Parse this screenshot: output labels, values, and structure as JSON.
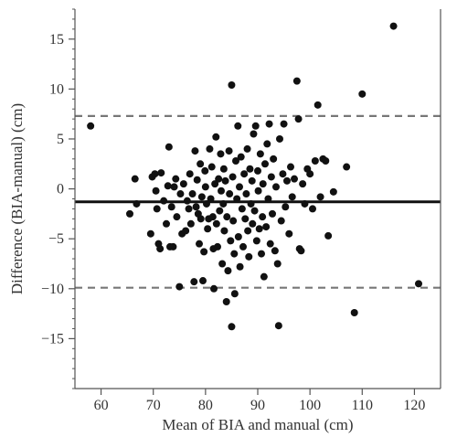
{
  "chart_data": {
    "type": "scatter",
    "xlabel": "Mean of BIA and manual (cm)",
    "ylabel": "Difference (BIA-manual) (cm)",
    "xlim": [
      55,
      125
    ],
    "ylim": [
      -20,
      18
    ],
    "xticks": [
      60,
      70,
      80,
      90,
      100,
      110,
      120
    ],
    "yticks": [
      -15,
      -10,
      -5,
      0,
      5,
      10,
      15
    ],
    "xtick_labels": [
      "60",
      "70",
      "80",
      "90",
      "100",
      "110",
      "120"
    ],
    "ytick_labels": [
      "−15",
      "−10",
      "−5",
      "0",
      "5",
      "10",
      "15"
    ],
    "minor_y_step": 1,
    "grid": false,
    "legend": "none",
    "reference_lines": [
      {
        "y": 7.3,
        "style": "dashed",
        "color": "#777777"
      },
      {
        "y": -1.3,
        "style": "solid",
        "color": "#111111"
      },
      {
        "y": -9.9,
        "style": "dashed",
        "color": "#777777"
      }
    ],
    "point_color": "#111111",
    "points": [
      [
        58.0,
        6.3
      ],
      [
        65.5,
        -2.5
      ],
      [
        66.5,
        1.0
      ],
      [
        66.8,
        -1.5
      ],
      [
        69.5,
        -4.5
      ],
      [
        69.8,
        1.2
      ],
      [
        70.3,
        1.5
      ],
      [
        70.5,
        -0.2
      ],
      [
        70.7,
        -2.0
      ],
      [
        71.0,
        -5.5
      ],
      [
        71.3,
        -6.0
      ],
      [
        71.5,
        1.6
      ],
      [
        72.0,
        -1.2
      ],
      [
        72.5,
        -3.5
      ],
      [
        72.8,
        0.3
      ],
      [
        73.0,
        4.2
      ],
      [
        73.2,
        -5.8
      ],
      [
        73.5,
        -1.8
      ],
      [
        73.8,
        -5.8
      ],
      [
        74.0,
        0.2
      ],
      [
        74.3,
        1.0
      ],
      [
        74.5,
        -2.8
      ],
      [
        75.0,
        -9.8
      ],
      [
        75.2,
        -0.5
      ],
      [
        75.5,
        -4.5
      ],
      [
        75.8,
        0.5
      ],
      [
        76.2,
        -4.2
      ],
      [
        76.5,
        -1.2
      ],
      [
        76.8,
        -2.0
      ],
      [
        77.0,
        1.5
      ],
      [
        77.2,
        -3.5
      ],
      [
        77.5,
        -0.5
      ],
      [
        77.8,
        -9.3
      ],
      [
        78.0,
        3.8
      ],
      [
        78.2,
        -1.8
      ],
      [
        78.4,
        0.9
      ],
      [
        78.6,
        -2.5
      ],
      [
        78.8,
        -5.5
      ],
      [
        79.0,
        2.5
      ],
      [
        79.1,
        -3.0
      ],
      [
        79.3,
        -0.8
      ],
      [
        79.5,
        -9.2
      ],
      [
        79.7,
        -6.3
      ],
      [
        79.9,
        1.8
      ],
      [
        80.0,
        0.2
      ],
      [
        80.2,
        -1.5
      ],
      [
        80.4,
        -4.0
      ],
      [
        80.6,
        -3.0
      ],
      [
        80.8,
        4.0
      ],
      [
        81.0,
        -1.0
      ],
      [
        81.2,
        2.2
      ],
      [
        81.4,
        -2.8
      ],
      [
        81.5,
        -6.0
      ],
      [
        81.6,
        -10.0
      ],
      [
        81.8,
        0.5
      ],
      [
        82.0,
        5.2
      ],
      [
        82.1,
        -3.5
      ],
      [
        82.3,
        -5.8
      ],
      [
        82.5,
        1.0
      ],
      [
        82.7,
        -2.2
      ],
      [
        82.9,
        3.5
      ],
      [
        83.0,
        -0.2
      ],
      [
        83.2,
        -7.5
      ],
      [
        83.4,
        -1.5
      ],
      [
        83.5,
        2.0
      ],
      [
        83.6,
        -4.2
      ],
      [
        83.8,
        0.8
      ],
      [
        84.0,
        -11.3
      ],
      [
        84.1,
        -2.8
      ],
      [
        84.3,
        -8.2
      ],
      [
        84.5,
        3.8
      ],
      [
        84.6,
        -0.5
      ],
      [
        84.8,
        -5.2
      ],
      [
        85.0,
        10.4
      ],
      [
        85.0,
        -13.8
      ],
      [
        85.2,
        1.2
      ],
      [
        85.3,
        -3.2
      ],
      [
        85.5,
        -6.5
      ],
      [
        85.6,
        -10.5
      ],
      [
        85.8,
        2.8
      ],
      [
        86.0,
        -1.0
      ],
      [
        86.2,
        6.3
      ],
      [
        86.3,
        -4.8
      ],
      [
        86.5,
        0.2
      ],
      [
        86.6,
        -7.8
      ],
      [
        86.8,
        3.2
      ],
      [
        87.0,
        -2.0
      ],
      [
        87.2,
        -5.8
      ],
      [
        87.4,
        1.5
      ],
      [
        87.6,
        -3.0
      ],
      [
        87.8,
        -0.5
      ],
      [
        88.0,
        4.0
      ],
      [
        88.1,
        -4.2
      ],
      [
        88.3,
        -6.8
      ],
      [
        88.5,
        2.0
      ],
      [
        88.7,
        -1.5
      ],
      [
        88.9,
        0.8
      ],
      [
        89.0,
        -3.5
      ],
      [
        89.2,
        5.5
      ],
      [
        89.4,
        -2.2
      ],
      [
        89.6,
        6.3
      ],
      [
        89.8,
        -5.2
      ],
      [
        90.0,
        1.8
      ],
      [
        90.1,
        -0.2
      ],
      [
        90.3,
        -4.0
      ],
      [
        90.5,
        3.5
      ],
      [
        90.7,
        -6.5
      ],
      [
        90.9,
        -2.8
      ],
      [
        91.0,
        0.5
      ],
      [
        91.2,
        -8.8
      ],
      [
        91.4,
        2.5
      ],
      [
        91.6,
        -3.8
      ],
      [
        91.8,
        4.5
      ],
      [
        92.0,
        -1.0
      ],
      [
        92.2,
        6.5
      ],
      [
        92.4,
        -5.5
      ],
      [
        92.6,
        1.2
      ],
      [
        92.8,
        -2.5
      ],
      [
        93.0,
        3.0
      ],
      [
        93.3,
        -6.2
      ],
      [
        93.5,
        0.2
      ],
      [
        93.8,
        -7.5
      ],
      [
        94.0,
        -13.7
      ],
      [
        94.2,
        5.0
      ],
      [
        94.5,
        -3.2
      ],
      [
        94.8,
        1.5
      ],
      [
        95.0,
        6.5
      ],
      [
        95.3,
        -1.8
      ],
      [
        95.6,
        0.8
      ],
      [
        96.0,
        -4.5
      ],
      [
        96.3,
        2.2
      ],
      [
        96.6,
        -0.8
      ],
      [
        97.0,
        1.0
      ],
      [
        97.5,
        10.8
      ],
      [
        97.8,
        7.0
      ],
      [
        98.0,
        -6.0
      ],
      [
        98.3,
        -6.2
      ],
      [
        98.6,
        0.5
      ],
      [
        99.0,
        -1.5
      ],
      [
        99.5,
        2.0
      ],
      [
        100.0,
        1.5
      ],
      [
        100.5,
        -2.0
      ],
      [
        101.0,
        2.8
      ],
      [
        101.5,
        8.4
      ],
      [
        102.0,
        -0.8
      ],
      [
        102.5,
        3.0
      ],
      [
        103.0,
        2.8
      ],
      [
        103.5,
        -4.7
      ],
      [
        104.5,
        -0.3
      ],
      [
        107.0,
        2.2
      ],
      [
        108.5,
        -12.4
      ],
      [
        110.0,
        9.5
      ],
      [
        116.0,
        16.3
      ],
      [
        120.8,
        -9.5
      ]
    ]
  }
}
